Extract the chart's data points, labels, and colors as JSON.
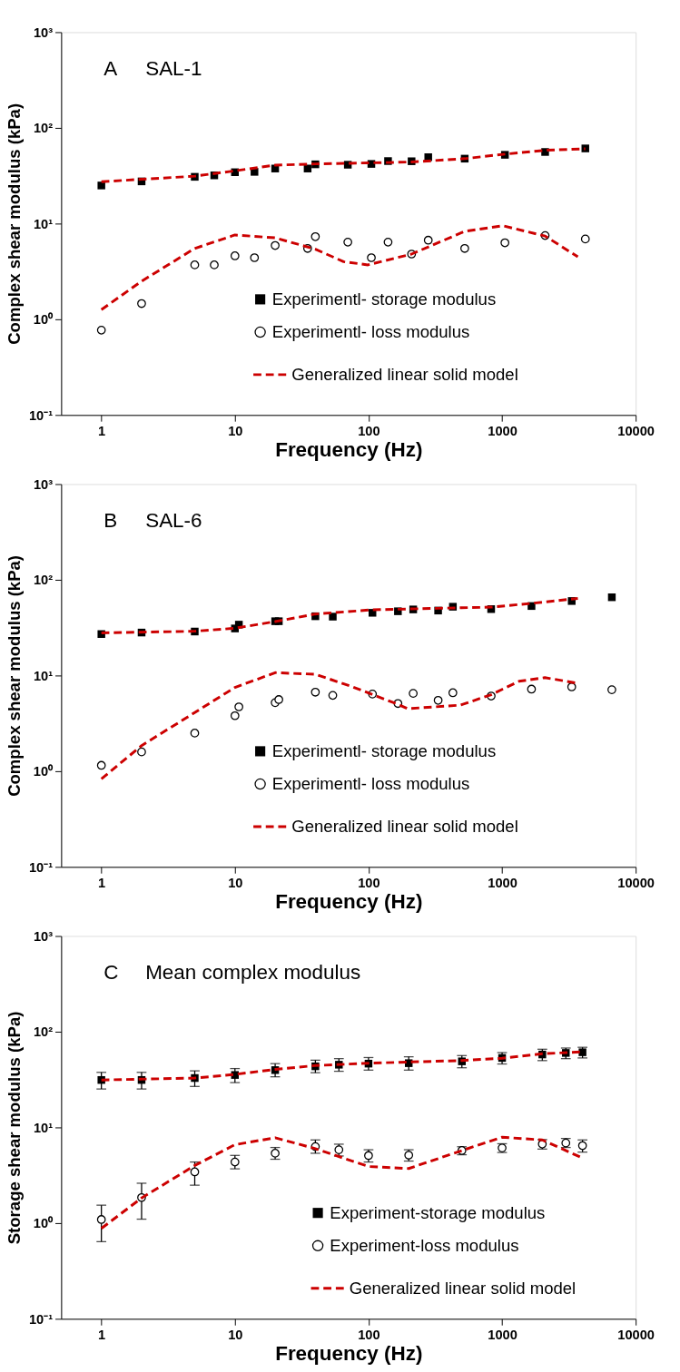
{
  "chart_data": [
    {
      "type": "scatter",
      "annotations": [
        "A",
        "SAL-1"
      ],
      "xlabel": "Frequency (Hz)",
      "ylabel": "Complex shear modulus (kPa)",
      "log": "xy",
      "grid": false,
      "legend": "bottom",
      "xlim": [
        0.5,
        10000
      ],
      "xticks": [
        1,
        10,
        100,
        1000,
        10000
      ],
      "ylim": [
        0.1,
        1000
      ],
      "yticks": [
        {
          "value": 0.1,
          "label": "10⁻¹"
        },
        {
          "value": 1,
          "label": "10⁰"
        },
        {
          "value": 10,
          "label": "10¹"
        },
        {
          "value": 100,
          "label": "10²"
        },
        {
          "value": 1000,
          "label": "10³"
        }
      ],
      "x": [
        1,
        2,
        5,
        7,
        10,
        14,
        20,
        35,
        40,
        70,
        105,
        140,
        210,
        280,
        525,
        1050,
        2100,
        4200
      ],
      "series": [
        {
          "name": "Experimentl- storage modulus",
          "color": "#000000",
          "marker": "square",
          "values": [
            25,
            27.6,
            30.8,
            31.9,
            34.4,
            34.7,
            37.6,
            37.6,
            41.6,
            41.2,
            42,
            45,
            44.8,
            49.4,
            47.7,
            52.3,
            56,
            61
          ]
        },
        {
          "name": "Experimentl- loss modulus",
          "color": "#000000",
          "marker": "circle",
          "values": [
            0.77,
            1.46,
            3.7,
            3.7,
            4.6,
            4.4,
            5.9,
            5.5,
            7.3,
            6.4,
            4.4,
            6.4,
            4.8,
            6.7,
            5.5,
            6.3,
            7.5,
            6.9
          ]
        },
        {
          "name": "Generalized linear solid model",
          "type": "line",
          "line_style": "dashed",
          "color": "#cc0000",
          "x": [
            1,
            5,
            10,
            20,
            40,
            210,
            525,
            1050,
            2100,
            4200
          ],
          "values": [
            27.4,
            31.3,
            35.6,
            40.8,
            42,
            44,
            47.7,
            53.2,
            58.3,
            60.5
          ]
        },
        {
          "type": "line",
          "line_style": "dashed",
          "color": "#cc0000",
          "x": [
            1,
            2,
            5,
            10,
            20,
            40,
            65,
            99,
            210,
            525,
            1010,
            2100,
            3690
          ],
          "values": [
            1.26,
            2.5,
            5.5,
            7.6,
            7.1,
            5.4,
            4.0,
            3.7,
            4.8,
            8.3,
            9.5,
            7.4,
            4.5
          ]
        }
      ]
    },
    {
      "type": "scatter",
      "annotations": [
        "B",
        "SAL-6"
      ],
      "xlabel": "Frequency (Hz)",
      "ylabel": "Complex shear modulus (kPa)",
      "log": "xy",
      "grid": false,
      "legend": "bottom",
      "xlim": [
        0.5,
        10000
      ],
      "xticks": [
        1,
        10,
        100,
        1000,
        10000
      ],
      "ylim": [
        0.1,
        1000
      ],
      "yticks": [
        {
          "value": 0.1,
          "label": "10⁻¹"
        },
        {
          "value": 1,
          "label": "10⁰"
        },
        {
          "value": 10,
          "label": "10¹"
        },
        {
          "value": 100,
          "label": "10²"
        },
        {
          "value": 1000,
          "label": "10³"
        }
      ],
      "x": [
        1,
        2,
        5,
        10,
        10.7,
        20,
        21.3,
        40,
        54,
        107,
        166,
        216,
        332,
        428,
        828,
        1660,
        3320,
        6630
      ],
      "series": [
        {
          "name": "Experimentl- storage modulus",
          "color": "#000000",
          "marker": "square",
          "values": [
            27.1,
            28.1,
            28.8,
            31,
            34,
            36.9,
            36.9,
            41.6,
            41.2,
            45.2,
            46.9,
            49,
            47.7,
            52.3,
            49.4,
            53.2,
            60,
            65.7
          ]
        },
        {
          "name": "Experimentl- loss modulus",
          "color": "#000000",
          "marker": "circle",
          "values": [
            1.15,
            1.59,
            2.5,
            3.8,
            4.7,
            5.2,
            5.6,
            6.7,
            6.2,
            6.4,
            5.1,
            6.5,
            5.5,
            6.6,
            6.1,
            7.2,
            7.6,
            7.1
          ]
        },
        {
          "name": "Generalized linear solid model",
          "type": "line",
          "line_style": "dashed",
          "color": "#cc0000",
          "x": [
            1,
            5,
            10,
            20,
            40,
            107,
            332,
            828,
            1660,
            3690
          ],
          "values": [
            27.9,
            29,
            31.2,
            36.6,
            43.9,
            48.6,
            50.4,
            51.8,
            56.7,
            63.9
          ]
        },
        {
          "type": "line",
          "line_style": "dashed",
          "color": "#cc0000",
          "x": [
            1,
            2,
            5,
            10,
            20,
            40,
            76,
            166,
            196,
            488,
            828,
            1340,
            2090,
            3690
          ],
          "values": [
            0.83,
            1.85,
            4.1,
            7.5,
            10.7,
            10.3,
            7.6,
            5.0,
            4.5,
            4.9,
            6.3,
            8.7,
            9.5,
            8.3
          ]
        }
      ]
    },
    {
      "type": "scatter",
      "annotations": [
        "C",
        "Mean complex modulus"
      ],
      "xlabel": "Frequency (Hz)",
      "ylabel": "Storage shear modulus (kPa)",
      "log": "xy",
      "grid": false,
      "legend": "bottom",
      "xlim": [
        0.5,
        10000
      ],
      "xticks": [
        1,
        10,
        100,
        1000,
        10000
      ],
      "ylim": [
        0.1,
        1000
      ],
      "yticks": [
        {
          "value": 0.1,
          "label": "10⁻¹"
        },
        {
          "value": 1,
          "label": "10⁰"
        },
        {
          "value": 10,
          "label": "10¹"
        },
        {
          "value": 100,
          "label": "10²"
        },
        {
          "value": 1000,
          "label": "10³"
        }
      ],
      "x": [
        1,
        2,
        5,
        10,
        20,
        40,
        60,
        100,
        200,
        500,
        1000,
        2000,
        3000,
        4000
      ],
      "series": [
        {
          "name": "Experiment-storage modulus",
          "color": "#000000",
          "marker": "square",
          "values": [
            31.3,
            31.3,
            32.8,
            35.3,
            39.7,
            43.5,
            45.2,
            46.4,
            46.9,
            49,
            53.2,
            57.8,
            60,
            61
          ],
          "errors": [
            [
              25.2,
              37.6
            ],
            [
              25.2,
              37.6
            ],
            [
              26.8,
              39
            ],
            [
              29.4,
              41.2
            ],
            [
              33.8,
              46.4
            ],
            [
              37.3,
              50.4
            ],
            [
              38.6,
              52.3
            ],
            [
              39.7,
              53.7
            ],
            [
              39.7,
              54.7
            ],
            [
              42,
              56.3
            ],
            [
              46,
              60.5
            ],
            [
              49.9,
              65.6
            ],
            [
              52.3,
              67.5
            ],
            [
              53.2,
              68.7
            ]
          ]
        },
        {
          "name": "Experiment-loss modulus",
          "color": "#000000",
          "marker": "circle",
          "values": [
            1.09,
            1.85,
            3.43,
            4.35,
            5.37,
            6.3,
            5.84,
            5.08,
            5.13,
            5.73,
            6.1,
            6.7,
            6.87,
            6.45
          ],
          "errors": [
            [
              0.64,
              1.54
            ],
            [
              1.1,
              2.61
            ],
            [
              2.49,
              4.35
            ],
            [
              3.69,
              5.1
            ],
            [
              4.65,
              6.17
            ],
            [
              5.37,
              7.4
            ],
            [
              5.03,
              6.68
            ],
            [
              4.35,
              5.84
            ],
            [
              4.45,
              5.84
            ],
            [
              5.18,
              6.28
            ],
            [
              5.47,
              6.75
            ],
            [
              5.94,
              7.46
            ],
            [
              6.17,
              7.67
            ],
            [
              5.52,
              7.4
            ]
          ]
        },
        {
          "name": "Generalized linear solid model",
          "type": "line",
          "line_style": "dashed",
          "color": "#cc0000",
          "x": [
            1,
            5,
            10,
            20,
            40,
            100,
            500,
            1000,
            2000,
            4000
          ],
          "values": [
            31.3,
            32.8,
            35.8,
            40.4,
            44.3,
            46.9,
            50,
            52.8,
            58.8,
            61.6
          ]
        },
        {
          "type": "line",
          "line_style": "dashed",
          "color": "#cc0000",
          "x": [
            1,
            2,
            5,
            10,
            20,
            40,
            100,
            200,
            500,
            1000,
            2000,
            4000
          ],
          "values": [
            0.88,
            1.83,
            4.0,
            6.6,
            7.8,
            6.0,
            3.9,
            3.72,
            5.73,
            7.9,
            7.4,
            4.78
          ]
        }
      ]
    }
  ]
}
